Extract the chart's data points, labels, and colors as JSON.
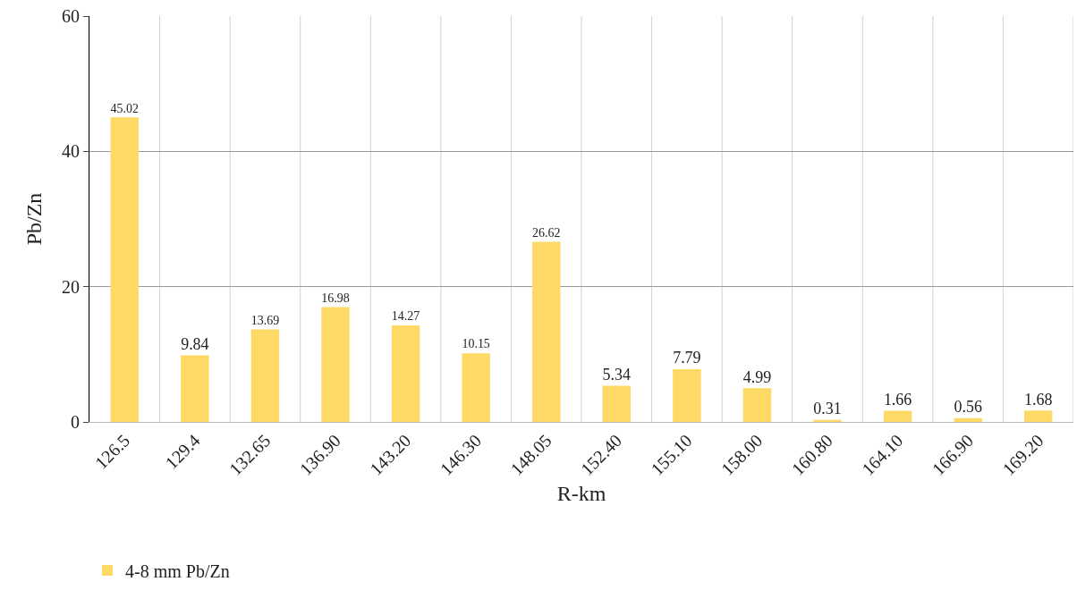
{
  "chart_data": {
    "type": "bar",
    "xlabel": "R-km",
    "ylabel": "Pb/Zn",
    "categories": [
      "126.5",
      "129.4",
      "132.65",
      "136.90",
      "143.20",
      "146.30",
      "148.05",
      "152.40",
      "155.10",
      "158.00",
      "160.80",
      "164.10",
      "166.90",
      "169.20"
    ],
    "series": [
      {
        "name": "4-8 mm Pb/Zn",
        "color": "#ffd966",
        "values": [
          45.02,
          9.84,
          13.69,
          16.98,
          14.27,
          10.15,
          26.62,
          5.34,
          7.79,
          4.99,
          0.31,
          1.66,
          0.56,
          1.68
        ]
      }
    ],
    "ylim": [
      0,
      60
    ],
    "yticks": [
      0,
      20,
      40,
      60
    ],
    "grid": true,
    "legend": "bottom left",
    "data_labels": true
  }
}
